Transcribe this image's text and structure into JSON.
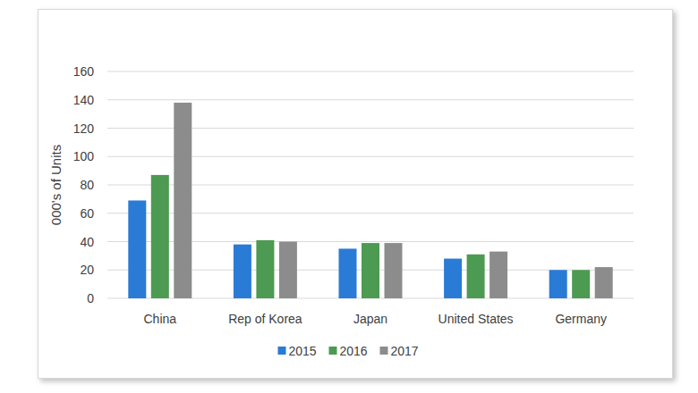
{
  "chart_data": {
    "type": "bar",
    "y_label": "000's of Units",
    "categories": [
      "China",
      "Rep of Korea",
      "Japan",
      "United States",
      "Germany"
    ],
    "series": [
      {
        "name": "2015",
        "color": "#2a7bd5",
        "values": [
          69,
          38,
          35,
          28,
          20
        ]
      },
      {
        "name": "2016",
        "color": "#4d9a52",
        "values": [
          87,
          41,
          39,
          31,
          20
        ]
      },
      {
        "name": "2017",
        "color": "#8c8c8c",
        "values": [
          138,
          40,
          39,
          33,
          22
        ]
      }
    ],
    "ylim": [
      0,
      160
    ],
    "yticks": [
      0,
      20,
      40,
      60,
      80,
      100,
      120,
      140,
      160
    ],
    "grid": true,
    "legend": "bottom"
  }
}
